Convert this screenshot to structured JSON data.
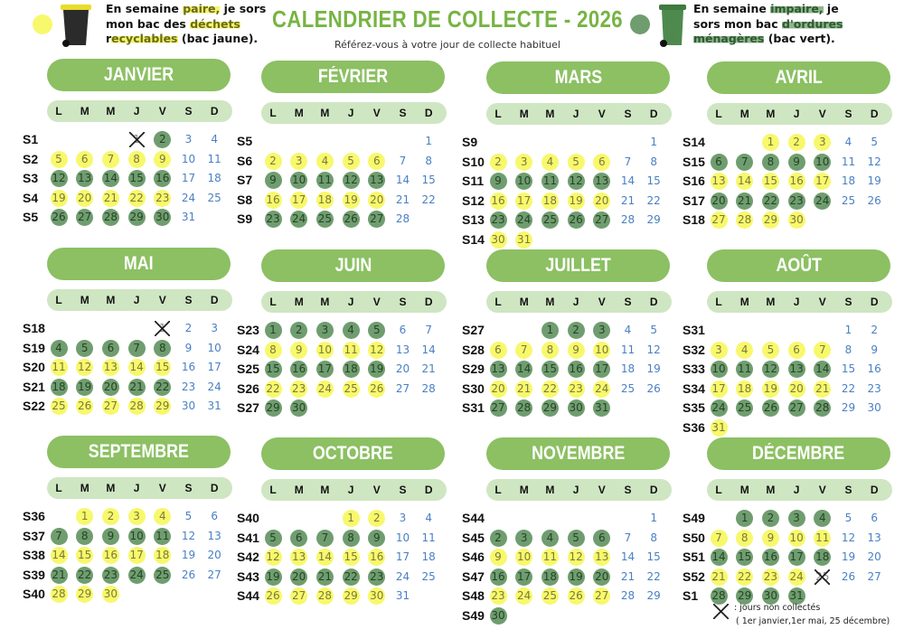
{
  "header": {
    "title": "CALENDRIER DE COLLECTE - 2026",
    "subtitle": "Référez-vous à votre jour de collecte habituel",
    "yellow_info": {
      "line1a": "En semaine ",
      "line1b": "paire,",
      "line1c": " je sors",
      "line2a": "mon bac des ",
      "line2b": "déchets",
      "line3a": "r",
      "line3b": "ecyclables",
      "line3c": " (bac jaune)."
    },
    "green_info": {
      "line1a": "En semaine ",
      "line1b": "impaire,",
      "line1c": " je",
      "line2a": "sors mon bac ",
      "line2b": "d'ordures",
      "line3b": "ménagères",
      "line3c": " (bac vert)."
    }
  },
  "colors": {
    "yellow": "#f8f86c",
    "green": "#6f9d6f",
    "month_pill": "#8cc063",
    "day_header": "#cfe6c2",
    "weekend": "#4a80c4",
    "title": "#76b443"
  },
  "icons": {
    "yellow_bin": "trash-bin-yellow-lid-icon",
    "green_bin": "trash-bin-green-icon",
    "cross": "cross-icon"
  },
  "day_headers": [
    "L",
    "M",
    "M",
    "J",
    "V",
    "S",
    "D"
  ],
  "months": [
    {
      "name": "JANVIER",
      "weeks": [
        {
          "w": "S1",
          "d": [
            "",
            "",
            "",
            "1x",
            "2g",
            "3",
            "4"
          ]
        },
        {
          "w": "S2",
          "d": [
            "5y",
            "6y",
            "7y",
            "8y",
            "9y",
            "10",
            "11"
          ]
        },
        {
          "w": "S3",
          "d": [
            "12g",
            "13g",
            "14g",
            "15g",
            "16g",
            "17",
            "18"
          ]
        },
        {
          "w": "S4",
          "d": [
            "19y",
            "20y",
            "21y",
            "22y",
            "23y",
            "24",
            "25"
          ]
        },
        {
          "w": "S5",
          "d": [
            "26g",
            "27g",
            "28g",
            "29g",
            "30g",
            "31",
            ""
          ]
        }
      ]
    },
    {
      "name": "FÉVRIER",
      "weeks": [
        {
          "w": "S5",
          "d": [
            "",
            "",
            "",
            "",
            "",
            "",
            "1"
          ]
        },
        {
          "w": "S6",
          "d": [
            "2y",
            "3y",
            "4y",
            "5y",
            "6y",
            "7",
            "8"
          ]
        },
        {
          "w": "S7",
          "d": [
            "9g",
            "10g",
            "11g",
            "12g",
            "13g",
            "14",
            "15"
          ]
        },
        {
          "w": "S8",
          "d": [
            "16y",
            "17y",
            "18y",
            "19y",
            "20y",
            "21",
            "22"
          ]
        },
        {
          "w": "S9",
          "d": [
            "23g",
            "24g",
            "25g",
            "26g",
            "27g",
            "28",
            ""
          ]
        }
      ]
    },
    {
      "name": "MARS",
      "weeks": [
        {
          "w": "S9",
          "d": [
            "",
            "",
            "",
            "",
            "",
            "",
            "1"
          ]
        },
        {
          "w": "S10",
          "d": [
            "2y",
            "3y",
            "4y",
            "5y",
            "6y",
            "7",
            "8"
          ]
        },
        {
          "w": "S11",
          "d": [
            "9g",
            "10g",
            "11g",
            "12g",
            "13g",
            "14",
            "15"
          ]
        },
        {
          "w": "S12",
          "d": [
            "16y",
            "17y",
            "18y",
            "19y",
            "20y",
            "21",
            "22"
          ]
        },
        {
          "w": "S13",
          "d": [
            "23g",
            "24g",
            "25g",
            "26g",
            "27g",
            "28",
            "29"
          ]
        },
        {
          "w": "S14",
          "d": [
            "30y",
            "31y",
            "",
            "",
            "",
            "",
            ""
          ]
        }
      ]
    },
    {
      "name": "AVRIL",
      "weeks": [
        {
          "w": "S14",
          "d": [
            "",
            "",
            "1y",
            "2y",
            "3y",
            "4",
            "5"
          ]
        },
        {
          "w": "S15",
          "d": [
            "6g",
            "7g",
            "8g",
            "9g",
            "10g",
            "11",
            "12"
          ]
        },
        {
          "w": "S16",
          "d": [
            "13y",
            "14y",
            "15y",
            "16y",
            "17y",
            "18",
            "19"
          ]
        },
        {
          "w": "S17",
          "d": [
            "20g",
            "21g",
            "22g",
            "23g",
            "24g",
            "25",
            "26"
          ]
        },
        {
          "w": "S18",
          "d": [
            "27y",
            "28y",
            "29y",
            "30y",
            "",
            "",
            ""
          ]
        }
      ]
    },
    {
      "name": "MAI",
      "weeks": [
        {
          "w": "S18",
          "d": [
            "",
            "",
            "",
            "",
            "1x",
            "2",
            "3"
          ]
        },
        {
          "w": "S19",
          "d": [
            "4g",
            "5g",
            "6g",
            "7g",
            "8g",
            "9",
            "10"
          ]
        },
        {
          "w": "S20",
          "d": [
            "11y",
            "12y",
            "13y",
            "14y",
            "15y",
            "16",
            "17"
          ]
        },
        {
          "w": "S21",
          "d": [
            "18g",
            "19g",
            "20g",
            "21g",
            "22g",
            "23",
            "24"
          ]
        },
        {
          "w": "S22",
          "d": [
            "25y",
            "26y",
            "27y",
            "28y",
            "29y",
            "30",
            "31"
          ]
        }
      ]
    },
    {
      "name": "JUIN",
      "weeks": [
        {
          "w": "S23",
          "d": [
            "1g",
            "2g",
            "3g",
            "4g",
            "5g",
            "6",
            "7"
          ]
        },
        {
          "w": "S24",
          "d": [
            "8y",
            "9y",
            "10y",
            "11y",
            "12y",
            "13",
            "14"
          ]
        },
        {
          "w": "S25",
          "d": [
            "15g",
            "16g",
            "17g",
            "18g",
            "19g",
            "20",
            "21"
          ]
        },
        {
          "w": "S26",
          "d": [
            "22y",
            "23y",
            "24y",
            "25y",
            "26y",
            "27",
            "28"
          ]
        },
        {
          "w": "S27",
          "d": [
            "29g",
            "30g",
            "",
            "",
            "",
            "",
            ""
          ]
        }
      ]
    },
    {
      "name": "JUILLET",
      "weeks": [
        {
          "w": "S27",
          "d": [
            "",
            "",
            "1g",
            "2g",
            "3g",
            "4",
            "5"
          ]
        },
        {
          "w": "S28",
          "d": [
            "6y",
            "7y",
            "8y",
            "9y",
            "10y",
            "11",
            "12"
          ]
        },
        {
          "w": "S29",
          "d": [
            "13g",
            "14g",
            "15g",
            "16g",
            "17g",
            "18",
            "19"
          ]
        },
        {
          "w": "S30",
          "d": [
            "20y",
            "21y",
            "22y",
            "23y",
            "24y",
            "25",
            "26"
          ]
        },
        {
          "w": "S31",
          "d": [
            "27g",
            "28g",
            "29g",
            "30g",
            "31g",
            "",
            ""
          ]
        }
      ]
    },
    {
      "name": "AOÛT",
      "weeks": [
        {
          "w": "S31",
          "d": [
            "",
            "",
            "",
            "",
            "",
            "1",
            "2"
          ]
        },
        {
          "w": "S32",
          "d": [
            "3y",
            "4y",
            "5y",
            "6y",
            "7y",
            "8",
            "9"
          ]
        },
        {
          "w": "S33",
          "d": [
            "10g",
            "11g",
            "12g",
            "13g",
            "14g",
            "15",
            "16"
          ]
        },
        {
          "w": "S34",
          "d": [
            "17y",
            "18y",
            "19y",
            "20y",
            "21y",
            "22",
            "23"
          ]
        },
        {
          "w": "S35",
          "d": [
            "24g",
            "25g",
            "26g",
            "27g",
            "28g",
            "29",
            "30"
          ]
        },
        {
          "w": "S36",
          "d": [
            "31y",
            "",
            "",
            "",
            "",
            "",
            ""
          ]
        }
      ]
    },
    {
      "name": "SEPTEMBRE",
      "weeks": [
        {
          "w": "S36",
          "d": [
            "",
            "1y",
            "2y",
            "3y",
            "4y",
            "5",
            "6"
          ]
        },
        {
          "w": "S37",
          "d": [
            "7g",
            "8g",
            "9g",
            "10g",
            "11g",
            "12",
            "13"
          ]
        },
        {
          "w": "S38",
          "d": [
            "14y",
            "15y",
            "16y",
            "17y",
            "18y",
            "19",
            "20"
          ]
        },
        {
          "w": "S39",
          "d": [
            "21g",
            "22g",
            "23g",
            "24g",
            "25g",
            "26",
            "27"
          ]
        },
        {
          "w": "S40",
          "d": [
            "28y",
            "29y",
            "30y",
            "",
            "",
            "",
            ""
          ]
        }
      ]
    },
    {
      "name": "OCTOBRE",
      "weeks": [
        {
          "w": "S40",
          "d": [
            "",
            "",
            "",
            "1y",
            "2y",
            "3",
            "4"
          ]
        },
        {
          "w": "S41",
          "d": [
            "5g",
            "6g",
            "7g",
            "8g",
            "9g",
            "10",
            "11"
          ]
        },
        {
          "w": "S42",
          "d": [
            "12y",
            "13y",
            "14y",
            "15y",
            "16y",
            "17",
            "18"
          ]
        },
        {
          "w": "S43",
          "d": [
            "19g",
            "20g",
            "21g",
            "22g",
            "23g",
            "24",
            "25"
          ]
        },
        {
          "w": "S44",
          "d": [
            "26y",
            "27y",
            "28y",
            "29y",
            "30y",
            "31",
            ""
          ]
        }
      ]
    },
    {
      "name": "NOVEMBRE",
      "weeks": [
        {
          "w": "S44",
          "d": [
            "",
            "",
            "",
            "",
            "",
            "",
            "1"
          ]
        },
        {
          "w": "S45",
          "d": [
            "2g",
            "3g",
            "4g",
            "5g",
            "6g",
            "7",
            "8"
          ]
        },
        {
          "w": "S46",
          "d": [
            "9y",
            "10y",
            "11y",
            "12y",
            "13y",
            "14",
            "15"
          ]
        },
        {
          "w": "S47",
          "d": [
            "16g",
            "17g",
            "18g",
            "19g",
            "20g",
            "21",
            "22"
          ]
        },
        {
          "w": "S48",
          "d": [
            "23y",
            "24y",
            "25y",
            "26y",
            "27y",
            "28",
            "29"
          ]
        },
        {
          "w": "S49",
          "d": [
            "30g",
            "",
            "",
            "",
            "",
            "",
            ""
          ]
        }
      ]
    },
    {
      "name": "DÉCEMBRE",
      "weeks": [
        {
          "w": "S49",
          "d": [
            "",
            "1g",
            "2g",
            "3g",
            "4g",
            "5",
            "6"
          ]
        },
        {
          "w": "S50",
          "d": [
            "7y",
            "8y",
            "9y",
            "10y",
            "11y",
            "12",
            "13"
          ]
        },
        {
          "w": "S51",
          "d": [
            "14g",
            "15g",
            "16g",
            "17g",
            "18g",
            "19",
            "20"
          ]
        },
        {
          "w": "S52",
          "d": [
            "21y",
            "22y",
            "23y",
            "24y",
            "25x",
            "26",
            "27"
          ]
        },
        {
          "w": "S1",
          "d": [
            "28g",
            "29g",
            "30g",
            "31g",
            "",
            "",
            ""
          ]
        }
      ]
    }
  ],
  "legend": {
    "line1": ": jours non collectés",
    "line2": "( 1er janvier,1er mai, 25 décembre)"
  }
}
